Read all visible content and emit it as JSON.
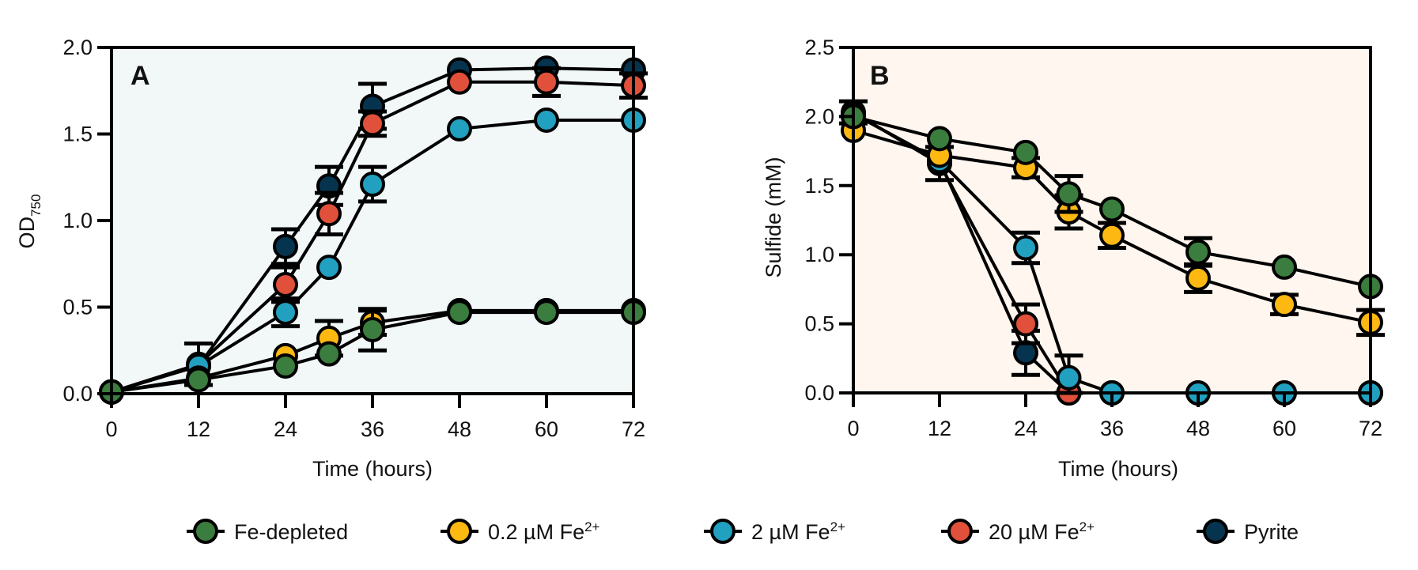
{
  "chart_data": [
    {
      "type": "line",
      "panel": "A",
      "xlabel": "Time (hours)",
      "ylabel": "OD",
      "ylabel_subscript": "750",
      "xlim": [
        0,
        72
      ],
      "ylim": [
        0,
        2.0
      ],
      "xticks": [
        0,
        12,
        24,
        36,
        48,
        60,
        72
      ],
      "yticks": [
        "0.0",
        "0.5",
        "1.0",
        "1.5",
        "2.0"
      ],
      "ytick_values": [
        0,
        0.5,
        1.0,
        1.5,
        2.0
      ],
      "grid": false,
      "background": "#F2F8F8",
      "series": [
        {
          "name": "Fe-depleted",
          "color": "#3A7D3E",
          "x": [
            0,
            12,
            24,
            30,
            36,
            48,
            60,
            72
          ],
          "y": [
            0.01,
            0.08,
            0.16,
            0.23,
            0.37,
            0.47,
            0.47,
            0.47
          ],
          "err": [
            0,
            0,
            0,
            0,
            0.12,
            0,
            0,
            0
          ]
        },
        {
          "name": "0.2 µM Fe²⁺",
          "color": "#FDB812",
          "x": [
            0,
            12,
            24,
            30,
            36,
            48,
            60,
            72
          ],
          "y": [
            0.01,
            0.09,
            0.22,
            0.32,
            0.41,
            0.48,
            0.48,
            0.48
          ],
          "err": [
            0,
            0,
            0,
            0.1,
            0.07,
            0,
            0,
            0
          ]
        },
        {
          "name": "2 µM Fe²⁺",
          "color": "#22A0C0",
          "x": [
            0,
            12,
            24,
            30,
            36,
            48,
            60,
            72
          ],
          "y": [
            0.01,
            0.16,
            0.47,
            0.73,
            1.21,
            1.53,
            1.58,
            1.58
          ],
          "err": [
            0,
            0,
            0.08,
            0,
            0.1,
            0,
            0,
            0
          ]
        },
        {
          "name": "20 µM Fe²⁺",
          "color": "#E0503A",
          "x": [
            0,
            12,
            24,
            30,
            36,
            48,
            60,
            72
          ],
          "y": [
            0.01,
            0.17,
            0.63,
            1.04,
            1.56,
            1.8,
            1.8,
            1.78
          ],
          "err": [
            0,
            0.12,
            0.1,
            0.12,
            0.07,
            0,
            0.08,
            0.07
          ]
        },
        {
          "name": "Pyrite",
          "color": "#06344F",
          "x": [
            0,
            12,
            24,
            30,
            36,
            48,
            60,
            72
          ],
          "y": [
            0.01,
            0.16,
            0.85,
            1.2,
            1.66,
            1.87,
            1.88,
            1.87
          ],
          "err": [
            0,
            0,
            0.1,
            0.11,
            0.13,
            0,
            0,
            0
          ]
        }
      ]
    },
    {
      "type": "line",
      "panel": "B",
      "xlabel": "Time (hours)",
      "ylabel": "Sulfide (mM)",
      "xlim": [
        0,
        72
      ],
      "ylim": [
        0,
        2.5
      ],
      "xticks": [
        0,
        12,
        24,
        36,
        48,
        60,
        72
      ],
      "yticks": [
        "0.0",
        "0.5",
        "1.0",
        "1.5",
        "2.0",
        "2.5"
      ],
      "ytick_values": [
        0,
        0.5,
        1.0,
        1.5,
        2.0,
        2.5
      ],
      "grid": false,
      "background": "#FFF6EF",
      "series": [
        {
          "name": "Fe-depleted",
          "color": "#3A7D3E",
          "x": [
            0,
            12,
            24,
            30,
            36,
            48,
            60,
            72
          ],
          "y": [
            2.0,
            1.84,
            1.74,
            1.44,
            1.33,
            1.02,
            0.91,
            0.77
          ],
          "err": [
            0,
            0,
            0,
            0.13,
            0,
            0.1,
            0,
            0
          ]
        },
        {
          "name": "0.2 µM Fe²⁺",
          "color": "#FDB812",
          "x": [
            0,
            12,
            24,
            30,
            36,
            48,
            60,
            72
          ],
          "y": [
            1.9,
            1.72,
            1.63,
            1.31,
            1.14,
            0.83,
            0.64,
            0.51
          ],
          "err": [
            0,
            0,
            0.07,
            0.12,
            0.09,
            0.1,
            0.07,
            0.09
          ]
        },
        {
          "name": "2 µM Fe²⁺",
          "color": "#22A0C0",
          "x": [
            0,
            12,
            24,
            30,
            36,
            48,
            60,
            72
          ],
          "y": [
            2.02,
            1.68,
            1.05,
            0.11,
            0,
            0,
            0,
            0
          ],
          "err": [
            0,
            0,
            0.11,
            0.16,
            0,
            0,
            0,
            0
          ]
        },
        {
          "name": "20 µM Fe²⁺",
          "color": "#E0503A",
          "x": [
            0,
            12,
            24,
            30,
            36,
            48,
            60,
            72
          ],
          "y": [
            2.03,
            1.66,
            0.5,
            0,
            0,
            0,
            0,
            0
          ],
          "err": [
            0.08,
            0.12,
            0.14,
            0,
            0,
            0,
            0,
            0
          ]
        },
        {
          "name": "Pyrite",
          "color": "#06344F",
          "x": [
            0,
            12,
            24,
            30
          ],
          "y": [
            2.02,
            1.68,
            0.29,
            0
          ],
          "err": [
            0,
            0,
            0.16,
            0
          ]
        }
      ]
    }
  ],
  "legend": {
    "placement": "bottom-center",
    "items": [
      {
        "label": "Fe-depleted",
        "color": "#3A7D3E",
        "superscript": ""
      },
      {
        "label": "0.2 µM Fe",
        "color": "#FDB812",
        "superscript": "2+"
      },
      {
        "label": "2 µM Fe",
        "color": "#22A0C0",
        "superscript": "2+"
      },
      {
        "label": "20 µM Fe",
        "color": "#E0503A",
        "superscript": "2+"
      },
      {
        "label": "Pyrite",
        "color": "#06344F",
        "superscript": ""
      }
    ]
  }
}
